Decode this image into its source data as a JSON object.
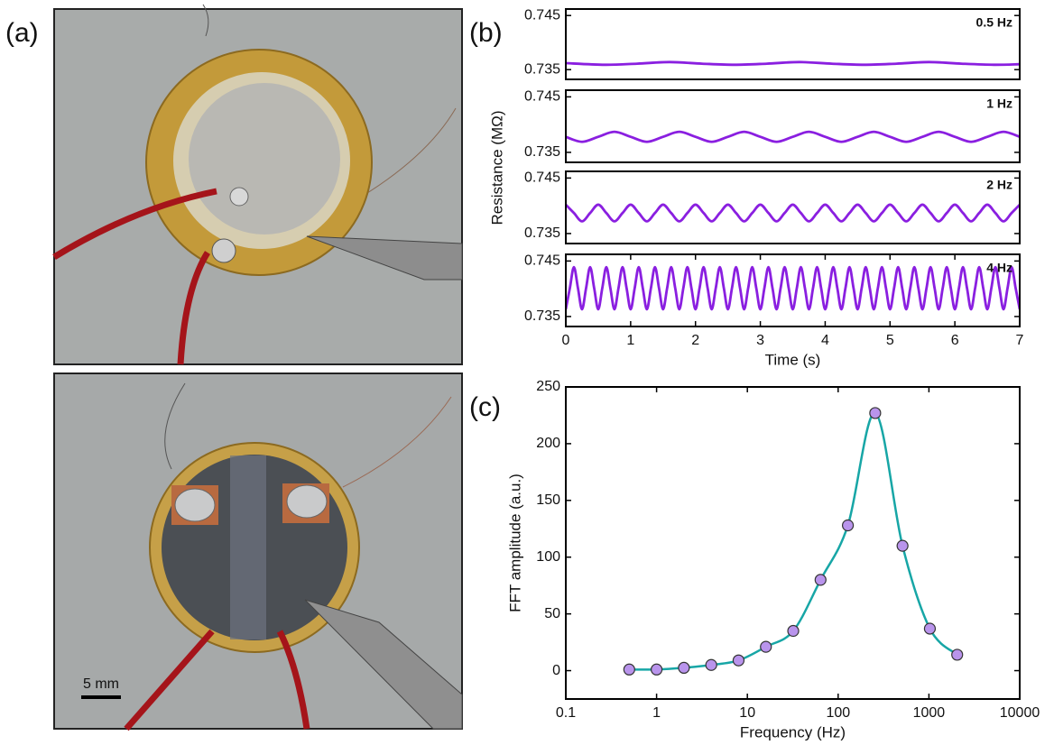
{
  "panel_labels": {
    "a": "(a)",
    "b": "(b)",
    "c": "(c)"
  },
  "scale_bar": "5 mm",
  "chart_data": [
    {
      "type": "line",
      "annotation": "0.5 Hz",
      "ylabel": "Resistance (MΩ)",
      "xlim": [
        0,
        7
      ],
      "ylim": [
        0.7332,
        0.7462
      ],
      "yticks": [
        0.735,
        0.745
      ],
      "x": [
        0,
        0.6,
        1.1,
        1.6,
        2.1,
        2.6,
        3.1,
        3.6,
        4.1,
        4.6,
        5.1,
        5.6,
        6.1,
        6.6,
        7
      ],
      "series": [
        {
          "color": "#8a1fe0",
          "values": [
            0.7362,
            0.7359,
            0.7361,
            0.7364,
            0.7361,
            0.7359,
            0.7361,
            0.7364,
            0.7361,
            0.7359,
            0.7361,
            0.7364,
            0.7361,
            0.7359,
            0.736
          ]
        }
      ]
    },
    {
      "type": "line",
      "annotation": "1 Hz",
      "xlim": [
        0,
        7
      ],
      "ylim": [
        0.7332,
        0.7462
      ],
      "yticks": [
        0.735,
        0.745
      ],
      "x": [
        0,
        0.25,
        0.5,
        0.75,
        1,
        1.25,
        1.5,
        1.75,
        2,
        2.25,
        2.5,
        2.75,
        3,
        3.25,
        3.5,
        3.75,
        4,
        4.25,
        4.5,
        4.75,
        5,
        5.25,
        5.5,
        5.75,
        6,
        6.25,
        6.5,
        6.75,
        7
      ],
      "series": [
        {
          "color": "#8a1fe0",
          "values": [
            0.7378,
            0.7369,
            0.7378,
            0.7387,
            0.7378,
            0.7369,
            0.7378,
            0.7387,
            0.7378,
            0.7369,
            0.7378,
            0.7387,
            0.7378,
            0.7369,
            0.7378,
            0.7387,
            0.7378,
            0.7369,
            0.7378,
            0.7387,
            0.7378,
            0.7369,
            0.7378,
            0.7387,
            0.7378,
            0.7369,
            0.7378,
            0.7387,
            0.7378
          ]
        }
      ]
    },
    {
      "type": "line",
      "annotation": "2 Hz",
      "xlim": [
        0,
        7
      ],
      "ylim": [
        0.7332,
        0.7462
      ],
      "yticks": [
        0.735,
        0.745
      ],
      "x": [
        0,
        0.125,
        0.25,
        0.375,
        0.5,
        0.625,
        0.75,
        0.875,
        1,
        1.125,
        1.25,
        1.375,
        1.5,
        1.625,
        1.75,
        1.875,
        2,
        2.125,
        2.25,
        2.375,
        2.5,
        2.625,
        2.75,
        2.875,
        3,
        3.125,
        3.25,
        3.375,
        3.5,
        3.625,
        3.75,
        3.875,
        4,
        4.125,
        4.25,
        4.375,
        4.5,
        4.625,
        4.75,
        4.875,
        5,
        5.125,
        5.25,
        5.375,
        5.5,
        5.625,
        5.75,
        5.875,
        6,
        6.125,
        6.25,
        6.375,
        6.5,
        6.625,
        6.75,
        6.875,
        7
      ],
      "series": [
        {
          "color": "#8a1fe0",
          "values": [
            0.7402,
            0.7387,
            0.7372,
            0.7387,
            0.7402,
            0.7387,
            0.7372,
            0.7387,
            0.7402,
            0.7387,
            0.7372,
            0.7387,
            0.7402,
            0.7387,
            0.7372,
            0.7387,
            0.7402,
            0.7387,
            0.7372,
            0.7387,
            0.7402,
            0.7387,
            0.7372,
            0.7387,
            0.7402,
            0.7387,
            0.7372,
            0.7387,
            0.7402,
            0.7387,
            0.7372,
            0.7387,
            0.7402,
            0.7387,
            0.7372,
            0.7387,
            0.7402,
            0.7387,
            0.7372,
            0.7387,
            0.7402,
            0.7387,
            0.7372,
            0.7387,
            0.7402,
            0.7387,
            0.7372,
            0.7387,
            0.7402,
            0.7387,
            0.7372,
            0.7387,
            0.7402,
            0.7387,
            0.7372,
            0.7387,
            0.7402
          ]
        }
      ]
    },
    {
      "type": "line",
      "annotation": "4 Hz",
      "xlabel": "Time (s)",
      "xlim": [
        0,
        7
      ],
      "xticks": [
        0,
        1,
        2,
        3,
        4,
        5,
        6,
        7
      ],
      "ylim": [
        0.7332,
        0.7462
      ],
      "yticks": [
        0.735,
        0.745
      ],
      "x": [
        0,
        0.0625,
        0.125,
        0.1875,
        0.25,
        0.3125,
        0.375,
        0.4375,
        0.5,
        0.5625,
        0.625,
        0.6875,
        0.75,
        0.8125,
        0.875,
        0.9375,
        1,
        1.0625,
        1.125,
        1.1875,
        1.25,
        1.3125,
        1.375,
        1.4375,
        1.5,
        1.5625,
        1.625,
        1.6875,
        1.75,
        1.8125,
        1.875,
        1.9375,
        2,
        2.0625,
        2.125,
        2.1875,
        2.25,
        2.3125,
        2.375,
        2.4375,
        2.5,
        2.5625,
        2.625,
        2.6875,
        2.75,
        2.8125,
        2.875,
        2.9375,
        3,
        3.0625,
        3.125,
        3.1875,
        3.25,
        3.3125,
        3.375,
        3.4375,
        3.5,
        3.5625,
        3.625,
        3.6875,
        3.75,
        3.8125,
        3.875,
        3.9375,
        4,
        4.0625,
        4.125,
        4.1875,
        4.25,
        4.3125,
        4.375,
        4.4375,
        4.5,
        4.5625,
        4.625,
        4.6875,
        4.75,
        4.8125,
        4.875,
        4.9375,
        5,
        5.0625,
        5.125,
        5.1875,
        5.25,
        5.3125,
        5.375,
        5.4375,
        5.5,
        5.5625,
        5.625,
        5.6875,
        5.75,
        5.8125,
        5.875,
        5.9375,
        6,
        6.0625,
        6.125,
        6.1875,
        6.25,
        6.3125,
        6.375,
        6.4375,
        6.5,
        6.5625,
        6.625,
        6.6875,
        6.75,
        6.8125,
        6.875,
        6.9375,
        7
      ],
      "series": [
        {
          "color": "#8a1fe0",
          "values": [
            0.7363,
            0.7401,
            0.7439,
            0.7401,
            0.7363,
            0.7401,
            0.7439,
            0.7401,
            0.7363,
            0.7401,
            0.7439,
            0.7401,
            0.7363,
            0.7401,
            0.7439,
            0.7401,
            0.7363,
            0.7401,
            0.7439,
            0.7401,
            0.7363,
            0.7401,
            0.7439,
            0.7401,
            0.7363,
            0.7401,
            0.7439,
            0.7401,
            0.7363,
            0.7401,
            0.7439,
            0.7401,
            0.7363,
            0.7401,
            0.7439,
            0.7401,
            0.7363,
            0.7401,
            0.7439,
            0.7401,
            0.7363,
            0.7401,
            0.7439,
            0.7401,
            0.7363,
            0.7401,
            0.7439,
            0.7401,
            0.7363,
            0.7401,
            0.7439,
            0.7401,
            0.7363,
            0.7401,
            0.7439,
            0.7401,
            0.7363,
            0.7401,
            0.7439,
            0.7401,
            0.7363,
            0.7401,
            0.7439,
            0.7401,
            0.7363,
            0.7401,
            0.7439,
            0.7401,
            0.7363,
            0.7401,
            0.7439,
            0.7401,
            0.7363,
            0.7401,
            0.7439,
            0.7401,
            0.7363,
            0.7401,
            0.7439,
            0.7401,
            0.7363,
            0.7401,
            0.7439,
            0.7401,
            0.7363,
            0.7401,
            0.7439,
            0.7401,
            0.7363,
            0.7401,
            0.7439,
            0.7401,
            0.7363,
            0.7401,
            0.7439,
            0.7401,
            0.7363,
            0.7401,
            0.7439,
            0.7401,
            0.7363,
            0.7401,
            0.7439,
            0.7401,
            0.7363,
            0.7401,
            0.7439,
            0.7401,
            0.7363,
            0.7401,
            0.7439,
            0.7401,
            0.7363
          ]
        }
      ]
    },
    {
      "type": "line",
      "markers": true,
      "xlabel": "Frequency (Hz)",
      "ylabel": "FFT amplitude (a.u.)",
      "xscale": "log",
      "xlim": [
        0.1,
        10000
      ],
      "xticks": [
        0.1,
        1,
        10,
        100,
        1000,
        10000
      ],
      "ylim": [
        -25,
        250
      ],
      "yticks": [
        0,
        50,
        100,
        150,
        200,
        250
      ],
      "x": [
        0.5,
        1,
        2,
        4,
        8,
        16,
        32,
        64,
        128,
        256,
        512,
        1024,
        2048
      ],
      "series": [
        {
          "color": "#17a6a6",
          "marker_color": "#b994ec",
          "values": [
            1,
            1,
            2.5,
            5,
            9,
            21,
            35,
            80,
            128,
            227,
            110,
            37,
            14
          ]
        }
      ]
    }
  ]
}
